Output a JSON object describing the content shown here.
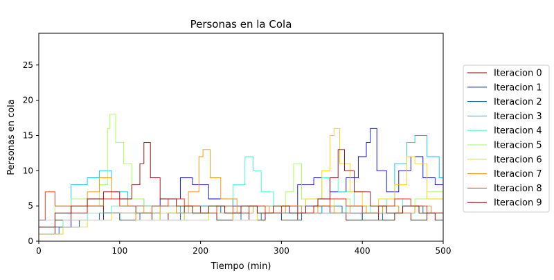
{
  "chart_data": {
    "type": "line",
    "title": "Personas en la Cola",
    "xlabel": "Tiempo (min)",
    "ylabel": "Personas en cola",
    "xlim": [
      0,
      500
    ],
    "ylim": [
      0,
      29.5
    ],
    "xticks": [
      0,
      100,
      200,
      300,
      400,
      500
    ],
    "yticks": [
      0,
      5,
      10,
      15,
      20,
      25
    ],
    "grid": false,
    "legend_position": "outside-right",
    "series": [
      {
        "name": "Iteracion 0",
        "color": "#7f0000",
        "points": [
          [
            0,
            1
          ],
          [
            20,
            3
          ],
          [
            40,
            4
          ],
          [
            60,
            5
          ],
          [
            80,
            4
          ],
          [
            100,
            3
          ],
          [
            120,
            4
          ],
          [
            140,
            3
          ],
          [
            160,
            4
          ],
          [
            180,
            5
          ],
          [
            200,
            4
          ],
          [
            220,
            3
          ],
          [
            240,
            4
          ],
          [
            260,
            3
          ],
          [
            280,
            4
          ],
          [
            300,
            3
          ],
          [
            320,
            4
          ],
          [
            340,
            5
          ],
          [
            360,
            4
          ],
          [
            380,
            3
          ],
          [
            400,
            4
          ],
          [
            420,
            3
          ],
          [
            440,
            4
          ],
          [
            460,
            3
          ],
          [
            480,
            4
          ],
          [
            500,
            2
          ]
        ]
      },
      {
        "name": "Iteracion 1",
        "color": "#0000e0",
        "points": [
          [
            0,
            2
          ],
          [
            40,
            3
          ],
          [
            80,
            4
          ],
          [
            120,
            5
          ],
          [
            150,
            6
          ],
          [
            175,
            9
          ],
          [
            190,
            8
          ],
          [
            210,
            6
          ],
          [
            240,
            5
          ],
          [
            270,
            4
          ],
          [
            300,
            4
          ],
          [
            320,
            8
          ],
          [
            340,
            9
          ],
          [
            360,
            7
          ],
          [
            380,
            9
          ],
          [
            395,
            12
          ],
          [
            405,
            14
          ],
          [
            410,
            16
          ],
          [
            418,
            10
          ],
          [
            430,
            7
          ],
          [
            445,
            10
          ],
          [
            460,
            12
          ],
          [
            475,
            9
          ],
          [
            490,
            8
          ],
          [
            500,
            6
          ]
        ]
      },
      {
        "name": "Iteracion 2",
        "color": "#005fa0",
        "points": [
          [
            0,
            1
          ],
          [
            25,
            2
          ],
          [
            50,
            3
          ],
          [
            75,
            4
          ],
          [
            100,
            3
          ],
          [
            125,
            4
          ],
          [
            150,
            3
          ],
          [
            175,
            4
          ],
          [
            200,
            5
          ],
          [
            225,
            4
          ],
          [
            250,
            3
          ],
          [
            275,
            4
          ],
          [
            300,
            3
          ],
          [
            325,
            4
          ],
          [
            350,
            5
          ],
          [
            375,
            4
          ],
          [
            400,
            3
          ],
          [
            425,
            4
          ],
          [
            450,
            5
          ],
          [
            475,
            4
          ],
          [
            500,
            3
          ]
        ]
      },
      {
        "name": "Iteracion 3",
        "color": "#00bfff",
        "points": [
          [
            0,
            2
          ],
          [
            20,
            4
          ],
          [
            40,
            8
          ],
          [
            60,
            9
          ],
          [
            75,
            10
          ],
          [
            90,
            7
          ],
          [
            110,
            6
          ],
          [
            130,
            5
          ],
          [
            150,
            5
          ],
          [
            175,
            4
          ],
          [
            200,
            5
          ],
          [
            230,
            4
          ],
          [
            260,
            5
          ],
          [
            290,
            4
          ],
          [
            320,
            5
          ],
          [
            350,
            4
          ],
          [
            380,
            5
          ],
          [
            400,
            4
          ],
          [
            420,
            5
          ],
          [
            440,
            11
          ],
          [
            455,
            14
          ],
          [
            465,
            15
          ],
          [
            480,
            12
          ],
          [
            495,
            9
          ],
          [
            500,
            8
          ]
        ]
      },
      {
        "name": "Iteracion 4",
        "color": "#30ffc8",
        "points": [
          [
            0,
            1
          ],
          [
            30,
            3
          ],
          [
            60,
            4
          ],
          [
            90,
            5
          ],
          [
            120,
            4
          ],
          [
            150,
            3
          ],
          [
            180,
            4
          ],
          [
            210,
            5
          ],
          [
            240,
            8
          ],
          [
            255,
            12
          ],
          [
            265,
            10
          ],
          [
            275,
            7
          ],
          [
            290,
            5
          ],
          [
            310,
            4
          ],
          [
            330,
            6
          ],
          [
            350,
            9
          ],
          [
            370,
            7
          ],
          [
            390,
            5
          ],
          [
            410,
            4
          ],
          [
            430,
            6
          ],
          [
            450,
            5
          ],
          [
            470,
            4
          ],
          [
            490,
            3
          ],
          [
            500,
            3
          ]
        ]
      },
      {
        "name": "Iteracion 5",
        "color": "#a0ff50",
        "points": [
          [
            0,
            3
          ],
          [
            20,
            5
          ],
          [
            40,
            6
          ],
          [
            60,
            5
          ],
          [
            75,
            8
          ],
          [
            85,
            16
          ],
          [
            88,
            18
          ],
          [
            95,
            14
          ],
          [
            105,
            11
          ],
          [
            115,
            6
          ],
          [
            130,
            5
          ],
          [
            150,
            4
          ],
          [
            170,
            5
          ],
          [
            190,
            4
          ],
          [
            210,
            5
          ],
          [
            230,
            4
          ],
          [
            250,
            5
          ],
          [
            270,
            4
          ],
          [
            290,
            5
          ],
          [
            305,
            7
          ],
          [
            315,
            11
          ],
          [
            325,
            6
          ],
          [
            345,
            5
          ],
          [
            365,
            6
          ],
          [
            385,
            5
          ],
          [
            405,
            4
          ],
          [
            425,
            5
          ],
          [
            445,
            4
          ],
          [
            465,
            6
          ],
          [
            480,
            7
          ],
          [
            500,
            4
          ]
        ]
      },
      {
        "name": "Iteracion 6",
        "color": "#ffd000",
        "points": [
          [
            0,
            1
          ],
          [
            30,
            2
          ],
          [
            60,
            3
          ],
          [
            90,
            4
          ],
          [
            120,
            3
          ],
          [
            150,
            4
          ],
          [
            180,
            3
          ],
          [
            210,
            4
          ],
          [
            240,
            3
          ],
          [
            270,
            4
          ],
          [
            300,
            5
          ],
          [
            330,
            6
          ],
          [
            350,
            10
          ],
          [
            360,
            15
          ],
          [
            365,
            16
          ],
          [
            372,
            11
          ],
          [
            385,
            7
          ],
          [
            400,
            5
          ],
          [
            420,
            6
          ],
          [
            440,
            8
          ],
          [
            455,
            12
          ],
          [
            465,
            11
          ],
          [
            480,
            6
          ],
          [
            500,
            4
          ]
        ]
      },
      {
        "name": "Iteracion 7",
        "color": "#ff8c00",
        "points": [
          [
            0,
            2
          ],
          [
            20,
            4
          ],
          [
            40,
            5
          ],
          [
            60,
            7
          ],
          [
            75,
            9
          ],
          [
            90,
            6
          ],
          [
            110,
            5
          ],
          [
            130,
            4
          ],
          [
            150,
            5
          ],
          [
            170,
            4
          ],
          [
            185,
            7
          ],
          [
            198,
            12
          ],
          [
            203,
            13
          ],
          [
            212,
            9
          ],
          [
            225,
            6
          ],
          [
            245,
            4
          ],
          [
            265,
            5
          ],
          [
            285,
            4
          ],
          [
            305,
            5
          ],
          [
            325,
            4
          ],
          [
            345,
            5
          ],
          [
            365,
            4
          ],
          [
            385,
            5
          ],
          [
            405,
            4
          ],
          [
            425,
            5
          ],
          [
            445,
            4
          ],
          [
            465,
            5
          ],
          [
            485,
            4
          ],
          [
            500,
            3
          ]
        ]
      },
      {
        "name": "Iteracion 8",
        "color": "#ff2800",
        "points": [
          [
            0,
            3
          ],
          [
            8,
            7
          ],
          [
            20,
            5
          ],
          [
            40,
            4
          ],
          [
            60,
            5
          ],
          [
            80,
            6
          ],
          [
            100,
            5
          ],
          [
            120,
            4
          ],
          [
            140,
            5
          ],
          [
            160,
            6
          ],
          [
            180,
            5
          ],
          [
            200,
            4
          ],
          [
            220,
            5
          ],
          [
            240,
            4
          ],
          [
            260,
            5
          ],
          [
            280,
            4
          ],
          [
            300,
            5
          ],
          [
            320,
            4
          ],
          [
            340,
            5
          ],
          [
            360,
            6
          ],
          [
            380,
            5
          ],
          [
            400,
            4
          ],
          [
            420,
            5
          ],
          [
            440,
            6
          ],
          [
            460,
            5
          ],
          [
            480,
            4
          ],
          [
            500,
            3
          ]
        ]
      },
      {
        "name": "Iteracion 9",
        "color": "#960000",
        "points": [
          [
            0,
            2
          ],
          [
            20,
            4
          ],
          [
            40,
            5
          ],
          [
            60,
            6
          ],
          [
            80,
            7
          ],
          [
            100,
            6
          ],
          [
            115,
            8
          ],
          [
            125,
            11
          ],
          [
            130,
            14
          ],
          [
            138,
            9
          ],
          [
            150,
            6
          ],
          [
            170,
            5
          ],
          [
            190,
            4
          ],
          [
            210,
            5
          ],
          [
            230,
            4
          ],
          [
            250,
            5
          ],
          [
            270,
            4
          ],
          [
            290,
            5
          ],
          [
            310,
            4
          ],
          [
            330,
            5
          ],
          [
            345,
            6
          ],
          [
            360,
            9
          ],
          [
            370,
            13
          ],
          [
            378,
            10
          ],
          [
            390,
            7
          ],
          [
            410,
            5
          ],
          [
            430,
            4
          ],
          [
            450,
            5
          ],
          [
            470,
            4
          ],
          [
            490,
            3
          ],
          [
            500,
            2
          ]
        ]
      }
    ]
  }
}
